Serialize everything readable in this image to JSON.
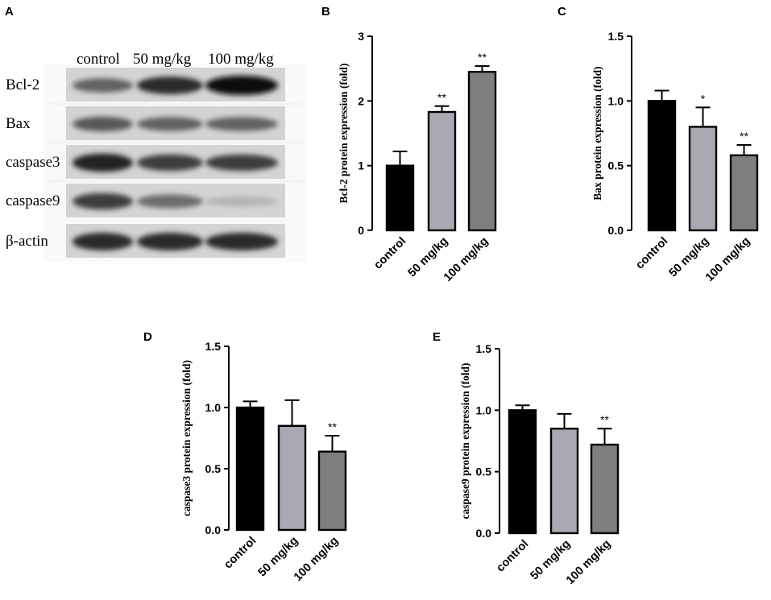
{
  "panels": {
    "A": "A",
    "B": "B",
    "C": "C",
    "D": "D",
    "E": "E"
  },
  "blot": {
    "columns": [
      "control",
      "50 mg/kg",
      "100 mg/kg"
    ],
    "rows": [
      {
        "label": "Bcl-2",
        "intensity": [
          0.55,
          0.85,
          1.0
        ]
      },
      {
        "label": "Bax",
        "intensity": [
          0.6,
          0.55,
          0.55
        ]
      },
      {
        "label": "caspase3",
        "intensity": [
          0.9,
          0.75,
          0.75
        ]
      },
      {
        "label": "caspase9",
        "intensity": [
          0.75,
          0.5,
          0.12
        ]
      },
      {
        "label": "β-actin",
        "intensity": [
          0.85,
          0.85,
          0.85
        ]
      }
    ]
  },
  "colors": {
    "control": "#000000",
    "mid": "#a9a9b1",
    "high": "#7e7e80"
  },
  "chart_data": [
    {
      "panel": "B",
      "type": "bar",
      "categories": [
        "control",
        "50 mg/kg",
        "100 mg/kg"
      ],
      "values": [
        1.0,
        1.83,
        2.45
      ],
      "errors": [
        0.22,
        0.09,
        0.09
      ],
      "significance": [
        "",
        "**",
        "**"
      ],
      "ylabel": "Bcl-2 protein expression (fold)",
      "ylim": [
        0,
        3
      ],
      "yticks": [
        "0",
        "1",
        "2",
        "3"
      ]
    },
    {
      "panel": "C",
      "type": "bar",
      "categories": [
        "control",
        "50 mg/kg",
        "100 mg/kg"
      ],
      "values": [
        1.0,
        0.8,
        0.58
      ],
      "errors": [
        0.08,
        0.15,
        0.08
      ],
      "significance": [
        "",
        "*",
        "**"
      ],
      "ylabel": "Bax protein expression (fold)",
      "ylim": [
        0,
        1.5
      ],
      "yticks": [
        "0.0",
        "0.5",
        "1.0",
        "1.5"
      ]
    },
    {
      "panel": "D",
      "type": "bar",
      "categories": [
        "control",
        "50 mg/kg",
        "100 mg/kg"
      ],
      "values": [
        1.0,
        0.85,
        0.64
      ],
      "errors": [
        0.05,
        0.21,
        0.13
      ],
      "significance": [
        "",
        "",
        "**"
      ],
      "ylabel": "caspase3 protein expression (fold)",
      "ylim": [
        0,
        1.5
      ],
      "yticks": [
        "0.0",
        "0.5",
        "1.0",
        "1.5"
      ]
    },
    {
      "panel": "E",
      "type": "bar",
      "categories": [
        "control",
        "50 mg/kg",
        "100 mg/kg"
      ],
      "values": [
        1.0,
        0.85,
        0.72
      ],
      "errors": [
        0.04,
        0.12,
        0.13
      ],
      "significance": [
        "",
        "",
        "**"
      ],
      "ylabel": "caspase9 protein expression (fold)",
      "ylim": [
        0,
        1.5
      ],
      "yticks": [
        "0.0",
        "0.5",
        "1.0",
        "1.5"
      ]
    }
  ]
}
